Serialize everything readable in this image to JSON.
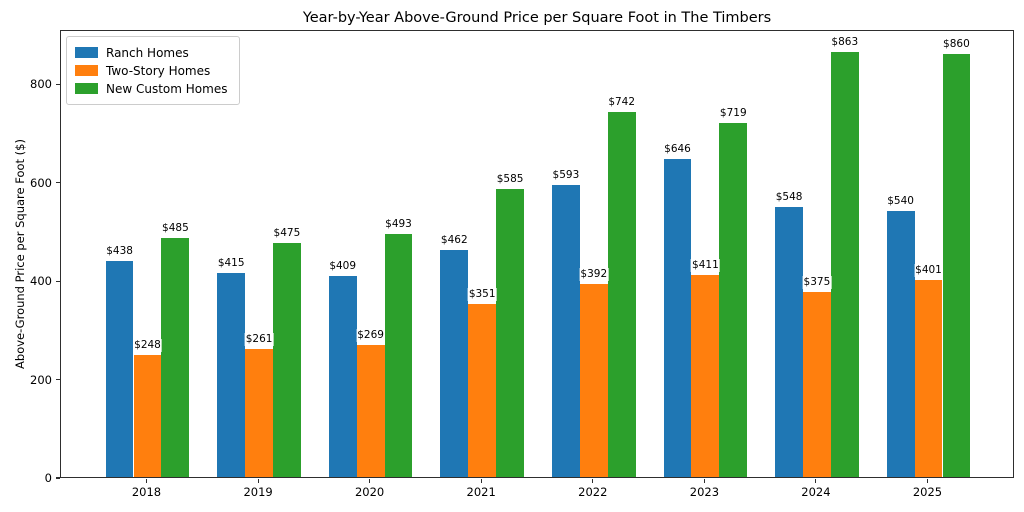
{
  "chart_data": {
    "type": "bar",
    "title": "Year-by-Year Above-Ground Price per Square Foot in The Timbers",
    "xlabel": "",
    "ylabel": "Above-Ground Price per Square Foot ($)",
    "categories": [
      "2018",
      "2019",
      "2020",
      "2021",
      "2022",
      "2023",
      "2024",
      "2025"
    ],
    "series": [
      {
        "name": "Ranch Homes",
        "color": "#1f77b4",
        "values": [
          438,
          415,
          409,
          462,
          593,
          646,
          548,
          540
        ],
        "labels": [
          "$438",
          "$415",
          "$409",
          "$462",
          "$593",
          "$646",
          "$548",
          "$540"
        ]
      },
      {
        "name": "Two-Story Homes",
        "color": "#ff7f0e",
        "values": [
          248,
          261,
          269,
          351,
          392,
          411,
          375,
          401
        ],
        "labels": [
          "$248",
          "$261",
          "$269",
          "$351",
          "$392",
          "$411",
          "$375",
          "$401"
        ]
      },
      {
        "name": "New Custom Homes",
        "color": "#2ca02c",
        "values": [
          485,
          475,
          493,
          585,
          742,
          719,
          863,
          860
        ],
        "labels": [
          "$485",
          "$475",
          "$493",
          "$585",
          "$742",
          "$719",
          "$863",
          "$860"
        ]
      }
    ],
    "yticks": [
      0,
      200,
      400,
      600,
      800
    ],
    "ytick_labels": [
      "0",
      "200",
      "400",
      "600",
      "800"
    ],
    "ylim": [
      0,
      910
    ],
    "grid": false,
    "legend_position": "upper-left",
    "value_label_prefix": "$"
  }
}
